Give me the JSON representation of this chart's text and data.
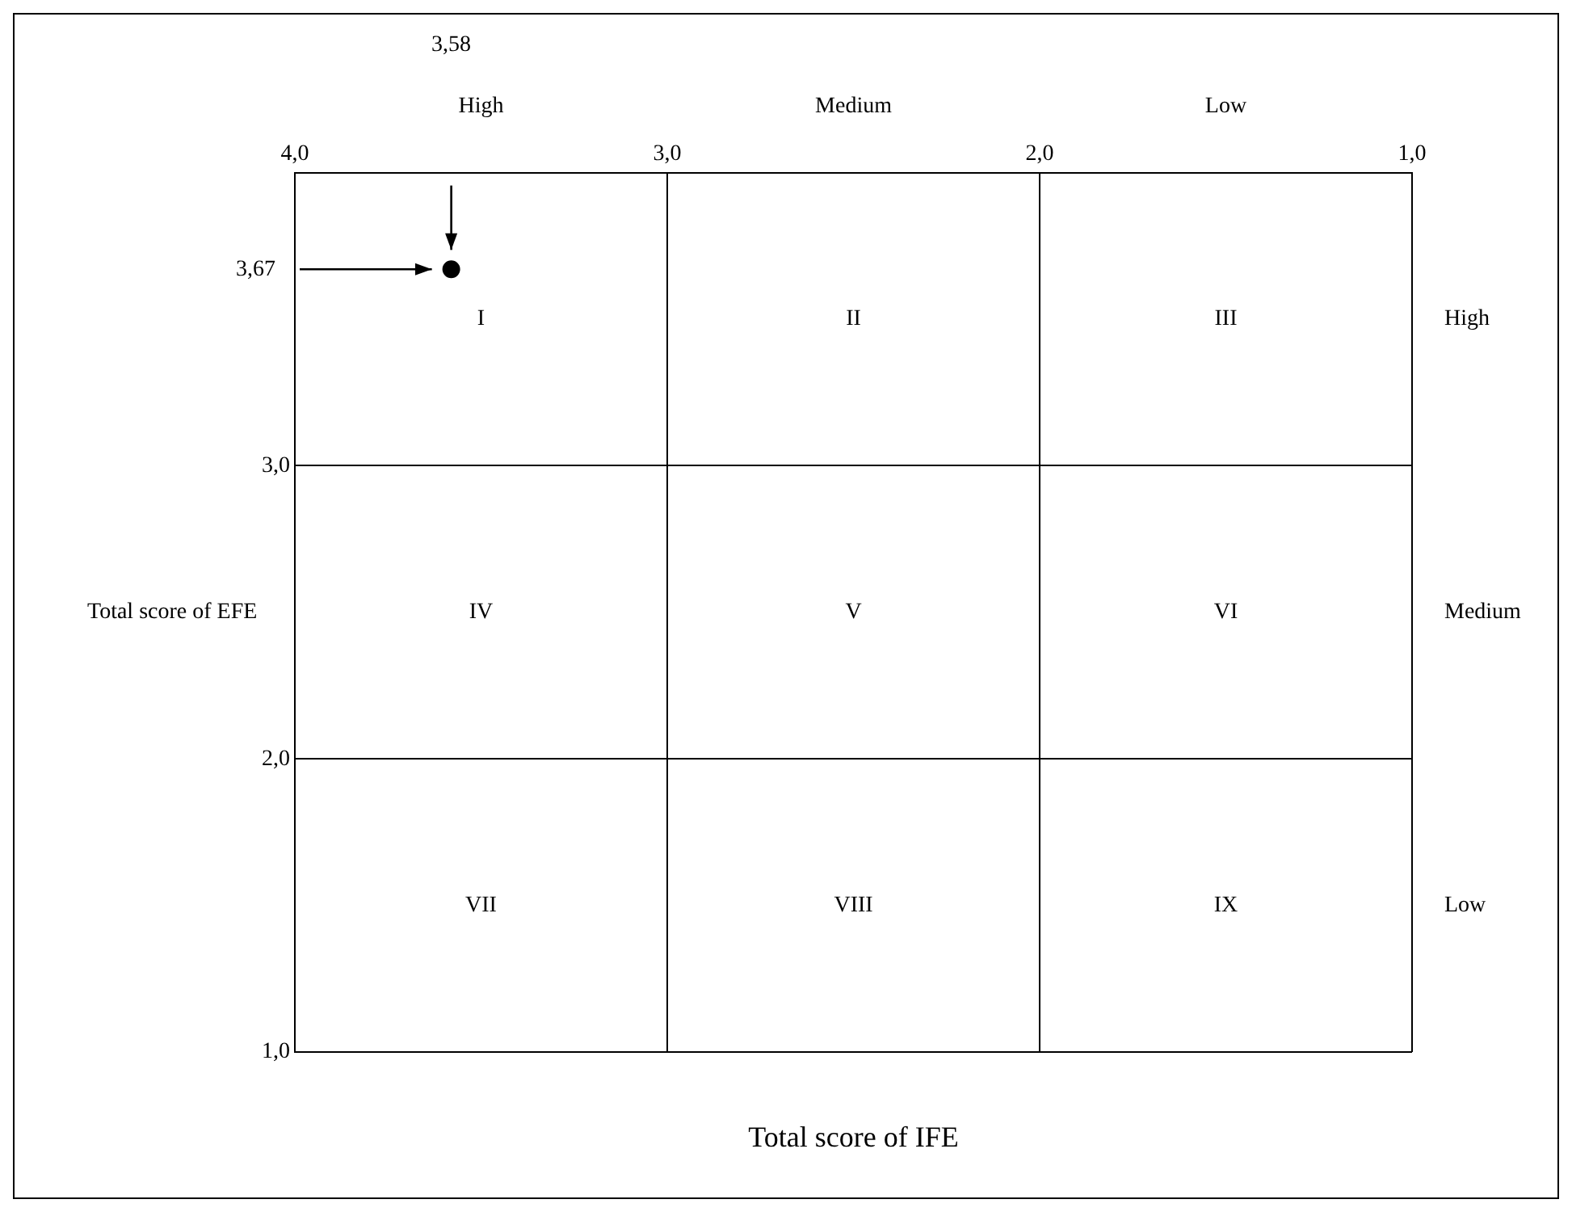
{
  "chart_data": {
    "type": "scatter",
    "xlabel": "Total score of IFE",
    "ylabel": "Total score of EFE",
    "x": [
      3.58
    ],
    "values": [
      3.67
    ],
    "color": "#000000",
    "marker": "circle",
    "xlim": [
      4,
      1
    ],
    "xticks": [
      {
        "value": 4,
        "label": "4,0"
      },
      {
        "value": 3,
        "label": "3,0"
      },
      {
        "value": 2,
        "label": "2,0"
      },
      {
        "value": 1,
        "label": "1,0"
      }
    ],
    "ylim": [
      1,
      4
    ],
    "yticks": [
      {
        "value": 1,
        "label": "1,0"
      },
      {
        "value": 2,
        "label": "2,0"
      },
      {
        "value": 3,
        "label": "3,0"
      }
    ],
    "grid": true,
    "legend": false,
    "annotations": [
      "3,58",
      "3,67",
      "High",
      "Medium",
      "Low",
      "High",
      "Medium",
      "Low",
      "I",
      "II",
      "III",
      "IV",
      "V",
      "VI",
      "VII",
      "VIII",
      "IX"
    ]
  }
}
